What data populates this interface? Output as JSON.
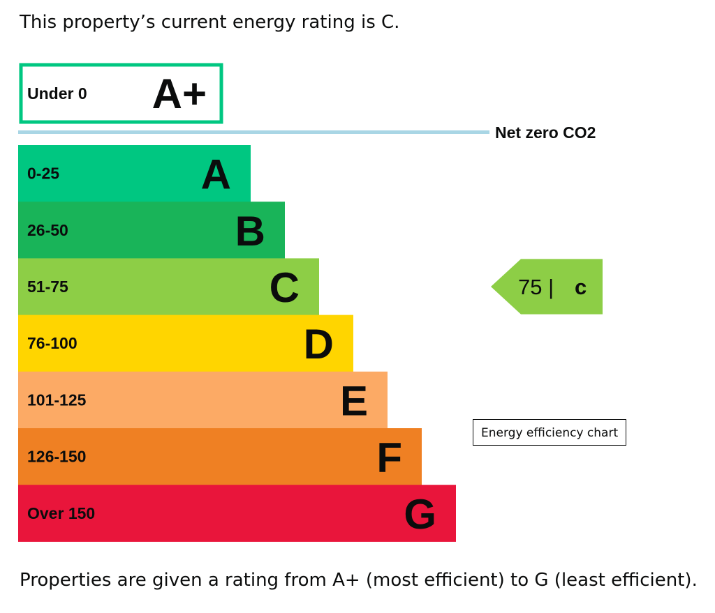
{
  "intro_text": "This property’s current energy rating is C.",
  "outro_text": "Properties are given a rating from A+ (most efficient) to G (least efficient).",
  "tooltip_text": "Energy efficiency chart",
  "chart_data": {
    "type": "bar",
    "categories": [
      "A+",
      "A",
      "B",
      "C",
      "D",
      "E",
      "F",
      "G"
    ],
    "bands": [
      {
        "letter": "A+",
        "range": "Under 0",
        "color": "#00c781",
        "style": "outline"
      },
      {
        "letter": "A",
        "range": "0-25",
        "color": "#00c781"
      },
      {
        "letter": "B",
        "range": "26-50",
        "color": "#19b459"
      },
      {
        "letter": "C",
        "range": "51-75",
        "color": "#8dce46"
      },
      {
        "letter": "D",
        "range": "76-100",
        "color": "#ffd500"
      },
      {
        "letter": "E",
        "range": "101-125",
        "color": "#fcaa65"
      },
      {
        "letter": "F",
        "range": "126-150",
        "color": "#ef8023"
      },
      {
        "letter": "G",
        "range": "Over 150",
        "color": "#e9153b"
      }
    ],
    "net_zero": {
      "label": "Net zero CO2",
      "color": "#a9d6e5",
      "position": "between A+ and A"
    },
    "current": {
      "score": "75 |",
      "letter": "C",
      "color": "#8dce46"
    }
  }
}
